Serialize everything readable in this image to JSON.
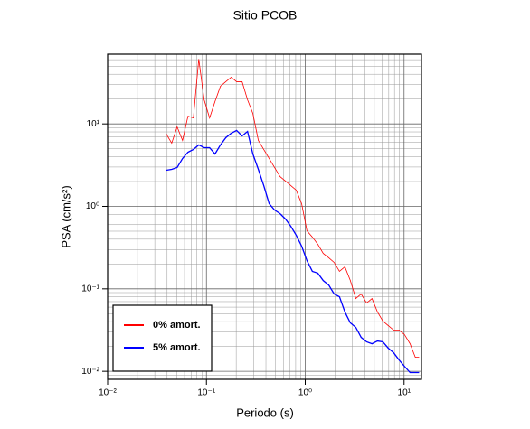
{
  "chart_data": {
    "type": "line",
    "title": "Sitio PCOB",
    "x_label": "Periodo (s)",
    "y_label": "PSA (cm/s²)",
    "log_x": true,
    "log_y": true,
    "grid": true,
    "legend_position": "lower-left",
    "xlim": [
      0.01,
      15
    ],
    "ylim": [
      0.008,
      70
    ],
    "xticks": [
      {
        "value": 0.01,
        "label": "10⁻²"
      },
      {
        "value": 0.1,
        "label": "10⁻¹"
      },
      {
        "value": 1,
        "label": "10⁰"
      },
      {
        "value": 10,
        "label": "10¹"
      }
    ],
    "yticks": [
      {
        "value": 0.01,
        "label": "10⁻²"
      },
      {
        "value": 0.1,
        "label": "10⁻¹"
      },
      {
        "value": 1,
        "label": "10⁰"
      },
      {
        "value": 10,
        "label": "10¹"
      }
    ],
    "x": [
      0.0392,
      0.0445,
      0.0505,
      0.0573,
      0.065,
      0.0738,
      0.0836,
      0.0948,
      0.1076,
      0.122,
      0.1385,
      0.157,
      0.178,
      0.202,
      0.2295,
      0.2605,
      0.295,
      0.335,
      0.38,
      0.431,
      0.489,
      0.555,
      0.63,
      0.714,
      0.811,
      0.919,
      1.04,
      1.18,
      1.34,
      1.52,
      1.73,
      1.96,
      2.22,
      2.52,
      2.86,
      3.25,
      3.68,
      4.18,
      4.74,
      5.38,
      6.1,
      6.92,
      7.85,
      8.91,
      10.1,
      11.5,
      13.0,
      14.2
    ],
    "series": [
      {
        "name": "0% amort.",
        "color": "#ff0000",
        "values": [
          7.52,
          5.85,
          9.2,
          6.3,
          12.4,
          11.8,
          61.0,
          19.6,
          11.8,
          18.6,
          28.6,
          32.5,
          36.8,
          32.5,
          32.5,
          19.6,
          13.4,
          6.3,
          4.9,
          3.81,
          2.96,
          2.3,
          2.03,
          1.79,
          1.57,
          1.08,
          0.506,
          0.425,
          0.347,
          0.269,
          0.238,
          0.209,
          0.163,
          0.185,
          0.126,
          0.0763,
          0.0867,
          0.0673,
          0.0763,
          0.0524,
          0.0407,
          0.0358,
          0.0316,
          0.0316,
          0.0279,
          0.0216,
          0.0148,
          0.0148
        ]
      },
      {
        "name": "5% amort.",
        "color": "#0000ff",
        "values": [
          2.74,
          2.81,
          2.96,
          3.81,
          4.54,
          4.9,
          5.56,
          5.15,
          5.15,
          4.32,
          5.56,
          6.8,
          7.71,
          8.32,
          7.15,
          8.11,
          4.32,
          2.81,
          1.79,
          1.08,
          0.904,
          0.817,
          0.703,
          0.574,
          0.446,
          0.33,
          0.22,
          0.163,
          0.155,
          0.126,
          0.111,
          0.0867,
          0.0803,
          0.0524,
          0.0387,
          0.0341,
          0.0258,
          0.0228,
          0.0216,
          0.0233,
          0.0228,
          0.0191,
          0.0168,
          0.0137,
          0.0115,
          0.00966,
          0.00966,
          0.00966
        ]
      }
    ]
  }
}
